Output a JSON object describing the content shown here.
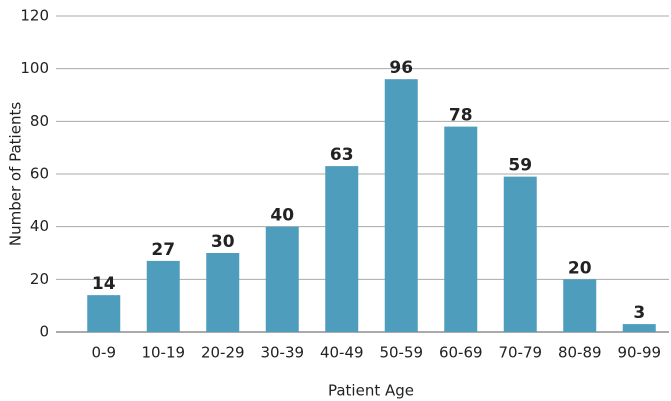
{
  "chart_data": {
    "type": "bar",
    "categories": [
      "0-9",
      "10-19",
      "20-29",
      "30-39",
      "40-49",
      "50-59",
      "60-69",
      "70-79",
      "80-89",
      "90-99"
    ],
    "values": [
      14,
      27,
      30,
      40,
      63,
      96,
      78,
      59,
      20,
      3
    ],
    "color": "#4f9dbd",
    "x_label": "Patient Age",
    "y_label": "Number of Patients",
    "ylim": [
      0,
      120
    ],
    "yticks": [
      0,
      20,
      40,
      60,
      80,
      100,
      120
    ],
    "grid": true
  }
}
